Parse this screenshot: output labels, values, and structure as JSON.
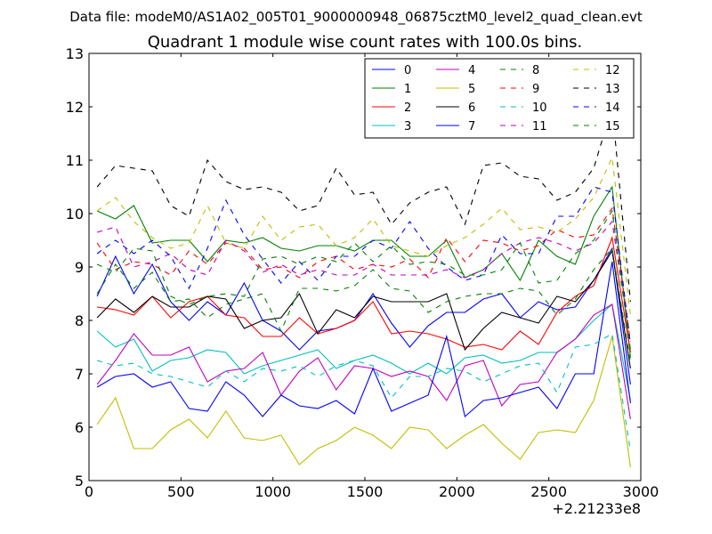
{
  "chart_data": {
    "type": "line",
    "suptitle": "Data file: modeM0/AS1A02_005T01_9000000948_06875cztM0_level2_quad_clean.evt",
    "title": "Quadrant 1 module wise count rates with 100.0s bins.",
    "xlabel": "",
    "ylabel": "",
    "x_offset_label": "+2.21233e8",
    "xlim": [
      0,
      3000
    ],
    "ylim": [
      5,
      13
    ],
    "xticks": [
      0,
      500,
      1000,
      1500,
      2000,
      2500,
      3000
    ],
    "xtick_labels": [
      "0",
      "500",
      "1000",
      "1500",
      "2000",
      "2500",
      "3000"
    ],
    "yticks": [
      5,
      6,
      7,
      8,
      9,
      10,
      11,
      12,
      13
    ],
    "ytick_labels": [
      "5",
      "6",
      "7",
      "8",
      "9",
      "10",
      "11",
      "12",
      "13"
    ],
    "legend_position": "top-right",
    "grid": false,
    "x": [
      44,
      144,
      244,
      344,
      444,
      544,
      644,
      744,
      844,
      944,
      1044,
      1144,
      1244,
      1344,
      1444,
      1544,
      1644,
      1744,
      1844,
      1944,
      2044,
      2144,
      2244,
      2344,
      2444,
      2544,
      2644,
      2744,
      2844,
      2944
    ],
    "series": [
      {
        "name": "0",
        "color": "#0000ff",
        "dash": "solid",
        "values": [
          8.45,
          9.2,
          8.5,
          9.05,
          8.35,
          8.0,
          8.35,
          8.1,
          8.7,
          8.0,
          7.8,
          7.45,
          7.8,
          7.85,
          8.0,
          8.5,
          7.95,
          7.5,
          7.9,
          8.15,
          8.15,
          8.4,
          8.5,
          8.05,
          8.35,
          8.2,
          8.25,
          8.75,
          9.35,
          6.8
        ]
      },
      {
        "name": "1",
        "color": "#008000",
        "dash": "solid",
        "values": [
          10.05,
          9.9,
          10.15,
          9.45,
          9.5,
          9.5,
          9.1,
          9.5,
          9.45,
          9.55,
          9.35,
          9.3,
          9.4,
          9.4,
          9.3,
          9.5,
          9.5,
          9.2,
          9.2,
          9.5,
          8.8,
          8.95,
          9.25,
          8.75,
          9.5,
          9.2,
          9.05,
          9.95,
          10.5,
          7.3
        ]
      },
      {
        "name": "2",
        "color": "#ff0000",
        "dash": "solid",
        "values": [
          8.25,
          8.2,
          8.1,
          8.45,
          8.05,
          8.35,
          8.45,
          8.1,
          8.05,
          7.7,
          7.7,
          8.05,
          7.75,
          7.85,
          8.0,
          8.35,
          7.75,
          7.8,
          7.75,
          7.65,
          7.5,
          7.55,
          7.45,
          7.8,
          7.55,
          8.15,
          8.45,
          8.65,
          9.55,
          7.4
        ]
      },
      {
        "name": "3",
        "color": "#00bfbf",
        "dash": "solid",
        "values": [
          7.8,
          7.5,
          7.65,
          7.05,
          7.25,
          7.3,
          7.45,
          7.4,
          7.0,
          7.15,
          7.25,
          7.35,
          7.45,
          7.1,
          7.25,
          7.35,
          7.2,
          7.0,
          7.2,
          7.0,
          7.3,
          7.35,
          7.2,
          7.25,
          7.4,
          7.4,
          7.65,
          8.0,
          8.3,
          6.5
        ]
      },
      {
        "name": "4",
        "color": "#bf00bf",
        "dash": "solid",
        "values": [
          6.8,
          7.25,
          7.75,
          7.35,
          7.35,
          7.5,
          6.85,
          7.05,
          7.1,
          7.4,
          6.6,
          7.05,
          7.3,
          6.7,
          7.15,
          7.1,
          6.95,
          7.05,
          6.95,
          6.5,
          7.15,
          7.25,
          6.4,
          6.8,
          6.85,
          7.4,
          7.65,
          8.1,
          8.3,
          6.15
        ]
      },
      {
        "name": "5",
        "color": "#bfbf00",
        "dash": "solid",
        "values": [
          6.05,
          6.55,
          5.6,
          5.6,
          5.95,
          6.15,
          5.8,
          6.3,
          5.8,
          5.75,
          5.85,
          5.3,
          5.6,
          5.75,
          6.0,
          5.85,
          5.6,
          6.0,
          5.95,
          5.6,
          5.85,
          6.05,
          5.7,
          5.4,
          5.9,
          5.95,
          5.9,
          6.5,
          7.7,
          5.25
        ]
      },
      {
        "name": "6",
        "color": "#000000",
        "dash": "solid",
        "values": [
          8.05,
          8.4,
          8.15,
          8.45,
          8.25,
          8.25,
          8.45,
          8.4,
          7.85,
          8.0,
          8.05,
          8.5,
          7.75,
          8.2,
          8.05,
          8.45,
          8.35,
          8.35,
          8.35,
          8.5,
          7.45,
          7.85,
          8.15,
          8.05,
          7.95,
          8.45,
          8.35,
          8.75,
          9.3,
          7.1
        ]
      },
      {
        "name": "7",
        "color": "#0000ff",
        "dash": "solid",
        "values": [
          6.75,
          6.95,
          7.0,
          6.75,
          6.85,
          6.35,
          6.3,
          6.85,
          6.6,
          6.2,
          6.6,
          6.4,
          6.35,
          6.5,
          6.25,
          7.1,
          6.3,
          6.45,
          6.6,
          7.7,
          6.2,
          6.5,
          6.55,
          6.65,
          6.75,
          6.35,
          7.0,
          7.0,
          9.1,
          6.45
        ]
      },
      {
        "name": "8",
        "color": "#008000",
        "dash": "dash",
        "values": [
          8.5,
          9.05,
          8.6,
          8.9,
          8.35,
          8.4,
          8.05,
          8.3,
          8.4,
          8.5,
          7.8,
          8.6,
          8.6,
          8.55,
          8.65,
          8.95,
          8.6,
          8.55,
          8.15,
          8.35,
          8.45,
          8.5,
          8.5,
          8.6,
          8.55,
          8.1,
          8.4,
          8.95,
          9.35,
          7.2
        ]
      },
      {
        "name": "9",
        "color": "#ff0000",
        "dash": "dash",
        "values": [
          9.45,
          8.95,
          9.1,
          9.05,
          8.85,
          9.3,
          9.05,
          9.45,
          9.35,
          8.95,
          9.0,
          8.8,
          9.1,
          9.2,
          8.95,
          9.05,
          9.0,
          9.15,
          8.8,
          9.55,
          9.1,
          9.5,
          9.45,
          9.3,
          9.4,
          9.7,
          9.55,
          9.6,
          10.1,
          7.6
        ]
      },
      {
        "name": "10",
        "color": "#00bfbf",
        "dash": "dash",
        "values": [
          7.25,
          7.15,
          7.2,
          7.0,
          6.95,
          6.85,
          6.75,
          7.05,
          6.85,
          7.1,
          7.05,
          7.15,
          6.95,
          7.15,
          7.25,
          7.15,
          6.55,
          6.95,
          6.95,
          7.1,
          7.05,
          6.85,
          7.0,
          7.15,
          7.2,
          6.65,
          7.5,
          7.55,
          7.75,
          5.55
        ]
      },
      {
        "name": "11",
        "color": "#bf00bf",
        "dash": "dash",
        "values": [
          9.65,
          9.75,
          9.0,
          9.1,
          9.25,
          8.95,
          8.85,
          9.5,
          9.3,
          8.9,
          9.05,
          8.85,
          8.95,
          8.85,
          8.85,
          9.05,
          8.85,
          8.85,
          8.85,
          8.95,
          8.8,
          8.95,
          9.25,
          9.45,
          9.55,
          9.45,
          9.3,
          9.45,
          9.85,
          7.55
        ]
      },
      {
        "name": "12",
        "color": "#bfbf00",
        "dash": "dash",
        "values": [
          10.05,
          10.3,
          9.85,
          9.55,
          9.35,
          9.45,
          10.15,
          9.45,
          9.35,
          9.95,
          9.5,
          9.75,
          9.8,
          9.4,
          9.55,
          9.9,
          9.4,
          9.3,
          9.2,
          9.4,
          9.55,
          9.8,
          10.1,
          9.7,
          9.75,
          9.65,
          9.9,
          10.3,
          11.05,
          8.1
        ]
      },
      {
        "name": "13",
        "color": "#000000",
        "dash": "dash",
        "values": [
          10.5,
          10.9,
          10.85,
          10.8,
          10.15,
          9.95,
          11.0,
          10.6,
          10.45,
          10.5,
          10.4,
          10.05,
          10.15,
          10.85,
          10.35,
          10.4,
          9.8,
          10.2,
          10.4,
          10.5,
          9.8,
          10.9,
          10.95,
          10.7,
          10.65,
          10.25,
          10.4,
          10.85,
          12.0,
          8.35
        ]
      },
      {
        "name": "14",
        "color": "#0000ff",
        "dash": "dash",
        "values": [
          9.25,
          9.5,
          9.25,
          9.5,
          9.2,
          8.6,
          9.35,
          10.25,
          9.6,
          9.15,
          8.7,
          9.1,
          8.75,
          9.2,
          9.2,
          9.5,
          9.35,
          9.85,
          9.35,
          9.0,
          8.75,
          8.85,
          9.6,
          9.25,
          9.25,
          9.95,
          9.95,
          10.5,
          10.4,
          7.55
        ]
      },
      {
        "name": "15",
        "color": "#008000",
        "dash": "dash",
        "values": [
          9.05,
          8.9,
          9.35,
          9.3,
          8.45,
          8.3,
          8.45,
          8.5,
          8.45,
          9.15,
          9.2,
          9.05,
          9.2,
          9.1,
          9.45,
          9.1,
          9.4,
          9.05,
          9.1,
          9.05,
          8.85,
          8.85,
          8.95,
          9.45,
          8.7,
          8.75,
          9.25,
          9.5,
          10.05,
          7.45
        ]
      }
    ]
  }
}
